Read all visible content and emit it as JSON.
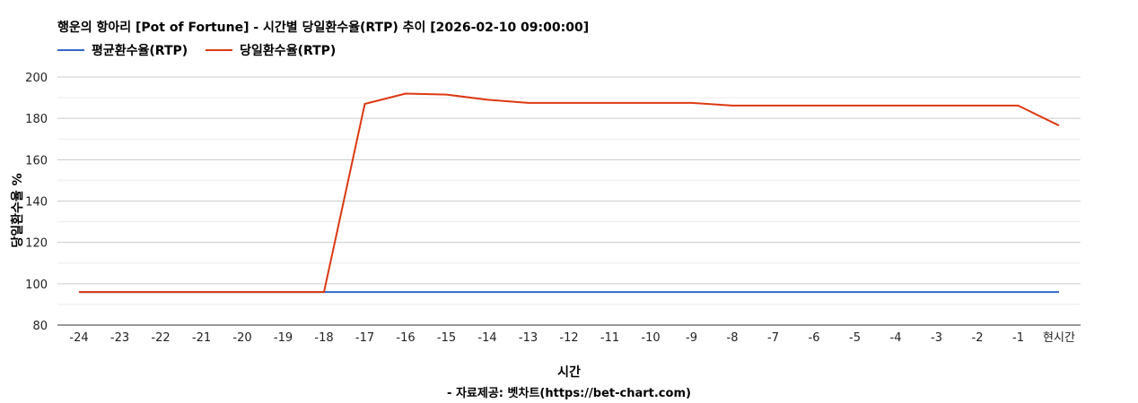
{
  "chart_data": {
    "type": "line",
    "title": "행운의 항아리 [Pot of Fortune] - 시간별 당일환수율(RTP) 추이 [2026-02-10 09:00:00]",
    "xlabel": "시간",
    "ylabel": "당일환수율 %",
    "source": "- 자료제공: 벳차트(https://bet-chart.com)",
    "categories": [
      "-24",
      "-23",
      "-22",
      "-21",
      "-20",
      "-19",
      "-18",
      "-17",
      "-16",
      "-15",
      "-14",
      "-13",
      "-12",
      "-11",
      "-10",
      "-9",
      "-8",
      "-7",
      "-6",
      "-5",
      "-4",
      "-3",
      "-2",
      "-1",
      "현시간"
    ],
    "ylim": [
      80,
      200
    ],
    "yticks": [
      80,
      100,
      120,
      140,
      160,
      180,
      200
    ],
    "grid": true,
    "legend": "top-left",
    "series": [
      {
        "name": "평균환수율(RTP)",
        "color": "#3366cc",
        "values": [
          96,
          96,
          96,
          96,
          96,
          96,
          96,
          96,
          96,
          96,
          96,
          96,
          96,
          96,
          96,
          96,
          96,
          96,
          96,
          96,
          96,
          96,
          96,
          96,
          96
        ]
      },
      {
        "name": "당일환수율(RTP)",
        "color": "#dc3912",
        "values": [
          96,
          96,
          96,
          96,
          96,
          96,
          96,
          187,
          192,
          191.5,
          189,
          187.5,
          187.5,
          187.5,
          187.5,
          187.5,
          186.2,
          186.2,
          186.2,
          186.2,
          186.2,
          186.2,
          186.2,
          186.2,
          176.5
        ]
      }
    ]
  }
}
